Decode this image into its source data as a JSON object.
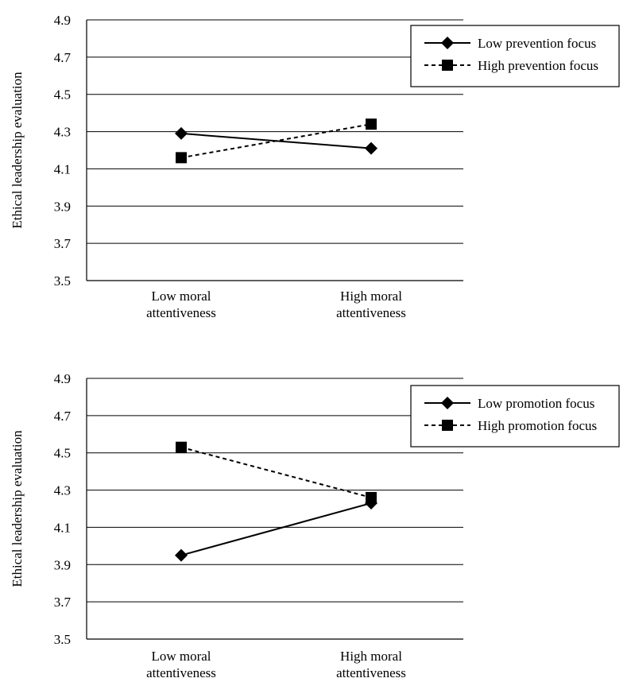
{
  "chart_data": [
    {
      "type": "line",
      "title": "",
      "xlabel": "",
      "ylabel": "Ethical leadership evaluation",
      "categories": [
        "Low moral\nattentiveness",
        "High moral\nattentiveness"
      ],
      "ylim": [
        3.5,
        4.9
      ],
      "yticks": [
        "3.5",
        "3.7",
        "3.9",
        "4.1",
        "4.3",
        "4.5",
        "4.7",
        "4.9"
      ],
      "grid": "horizontal",
      "legend_position": "top-right",
      "series": [
        {
          "name": "Low prevention focus",
          "values": [
            4.29,
            4.21
          ],
          "line_style": "solid",
          "marker": "diamond",
          "color": "#000000"
        },
        {
          "name": "High prevention focus",
          "values": [
            4.16,
            4.34
          ],
          "line_style": "dashed",
          "marker": "square",
          "color": "#000000"
        }
      ]
    },
    {
      "type": "line",
      "title": "",
      "xlabel": "",
      "ylabel": "Ethical leadership evaluation",
      "categories": [
        "Low moral\nattentiveness",
        "High moral\nattentiveness"
      ],
      "ylim": [
        3.5,
        4.9
      ],
      "yticks": [
        "3.5",
        "3.7",
        "3.9",
        "4.1",
        "4.3",
        "4.5",
        "4.7",
        "4.9"
      ],
      "grid": "horizontal",
      "legend_position": "top-right",
      "series": [
        {
          "name": "Low promotion focus",
          "values": [
            3.95,
            4.23
          ],
          "line_style": "solid",
          "marker": "diamond",
          "color": "#000000"
        },
        {
          "name": "High promotion focus",
          "values": [
            4.53,
            4.26
          ],
          "line_style": "dashed",
          "marker": "square",
          "color": "#000000"
        }
      ]
    }
  ]
}
